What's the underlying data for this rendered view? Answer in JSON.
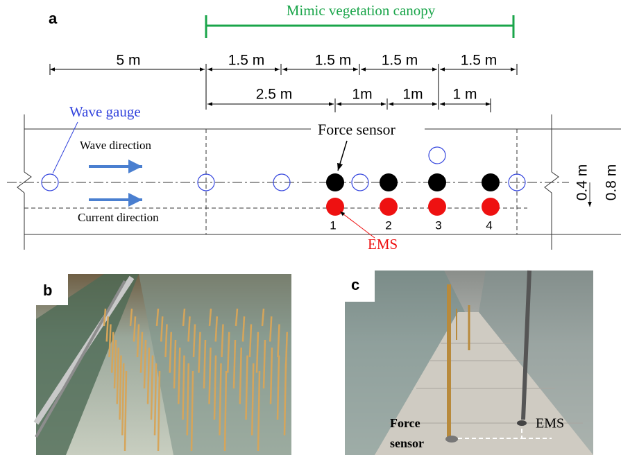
{
  "panel_a": {
    "label": "a",
    "canopy": "Mimic vegetation canopy",
    "dims_top": [
      "5 m",
      "1.5 m",
      "1.5 m",
      "1.5 m",
      "1.5 m"
    ],
    "dims_bottom": [
      "2.5 m",
      "1m",
      "1m",
      "1 m"
    ],
    "wave_gauge": "Wave gauge",
    "wave_direction": "Wave direction",
    "current_direction": "Current direction",
    "force_sensor": "Force sensor",
    "ems": "EMS",
    "numbers": [
      "1",
      "2",
      "3",
      "4"
    ],
    "half_width": "0.4 m",
    "width": "0.8 m"
  },
  "panel_b": {
    "label": "b"
  },
  "panel_c": {
    "label": "c",
    "force_sensor": "Force sensor",
    "force_sensor_lines": [
      "Force",
      "sensor"
    ],
    "ems": "EMS"
  }
}
